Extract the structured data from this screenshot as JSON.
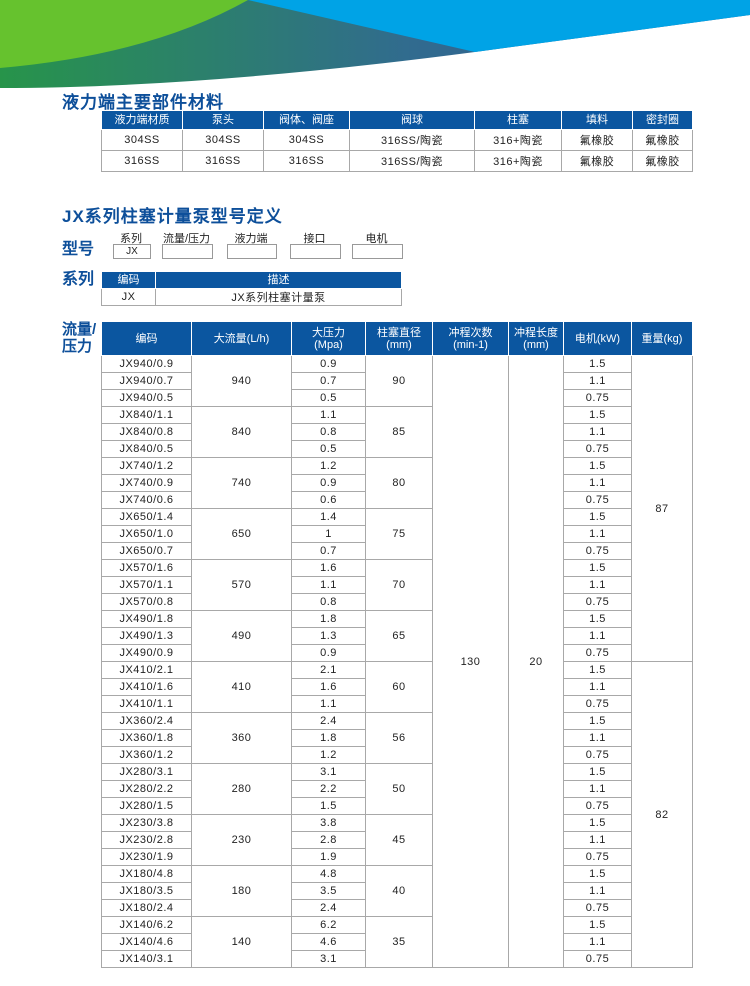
{
  "colors": {
    "header_blue": "#0b56a0",
    "title_blue": "#0d4f9a",
    "banner_green": "#66c22e",
    "banner_blue": "#00a3e6"
  },
  "materials": {
    "title": "液力端主要部件材料",
    "headers": [
      "液力端材质",
      "泵头",
      "阀体、阀座",
      "阀球",
      "柱塞",
      "填料",
      "密封圈"
    ],
    "rows": [
      [
        "304SS",
        "304SS",
        "304SS",
        "316SS/陶瓷",
        "316+陶瓷",
        "氟橡胶",
        "氟橡胶"
      ],
      [
        "316SS",
        "316SS",
        "316SS",
        "316SS/陶瓷",
        "316+陶瓷",
        "氟橡胶",
        "氟橡胶"
      ]
    ]
  },
  "model": {
    "title": "JX系列柱塞计量泵型号定义",
    "label": "型号",
    "fields": [
      {
        "label": "系列",
        "value": "JX"
      },
      {
        "label": "流量/压力",
        "value": ""
      },
      {
        "label": "液力端",
        "value": ""
      },
      {
        "label": "接口",
        "value": ""
      },
      {
        "label": "电机",
        "value": ""
      }
    ]
  },
  "series": {
    "label": "系列",
    "headers": [
      "编码",
      "描述"
    ],
    "rows": [
      [
        "JX",
        "JX系列柱塞计量泵"
      ]
    ]
  },
  "flow": {
    "label": "流量/压力",
    "headers": [
      "编码",
      "大流量(L/h)",
      "大压力\n(Mpa)",
      "柱塞直径\n(mm)",
      "冲程次数\n(min-1)",
      "冲程长度\n(mm)",
      "电机(kW)",
      "重量(kg)"
    ],
    "stroke_count": "130",
    "stroke_length": "20",
    "weights": [
      "87",
      "82"
    ],
    "groups": [
      {
        "flow": "940",
        "diameter": "90",
        "rows": [
          [
            "JX940/0.9",
            "0.9",
            "1.5"
          ],
          [
            "JX940/0.7",
            "0.7",
            "1.1"
          ],
          [
            "JX940/0.5",
            "0.5",
            "0.75"
          ]
        ]
      },
      {
        "flow": "840",
        "diameter": "85",
        "rows": [
          [
            "JX840/1.1",
            "1.1",
            "1.5"
          ],
          [
            "JX840/0.8",
            "0.8",
            "1.1"
          ],
          [
            "JX840/0.5",
            "0.5",
            "0.75"
          ]
        ]
      },
      {
        "flow": "740",
        "diameter": "80",
        "rows": [
          [
            "JX740/1.2",
            "1.2",
            "1.5"
          ],
          [
            "JX740/0.9",
            "0.9",
            "1.1"
          ],
          [
            "JX740/0.6",
            "0.6",
            "0.75"
          ]
        ]
      },
      {
        "flow": "650",
        "diameter": "75",
        "rows": [
          [
            "JX650/1.4",
            "1.4",
            "1.5"
          ],
          [
            "JX650/1.0",
            "1",
            "1.1"
          ],
          [
            "JX650/0.7",
            "0.7",
            "0.75"
          ]
        ]
      },
      {
        "flow": "570",
        "diameter": "70",
        "rows": [
          [
            "JX570/1.6",
            "1.6",
            "1.5"
          ],
          [
            "JX570/1.1",
            "1.1",
            "1.1"
          ],
          [
            "JX570/0.8",
            "0.8",
            "0.75"
          ]
        ]
      },
      {
        "flow": "490",
        "diameter": "65",
        "rows": [
          [
            "JX490/1.8",
            "1.8",
            "1.5"
          ],
          [
            "JX490/1.3",
            "1.3",
            "1.1"
          ],
          [
            "JX490/0.9",
            "0.9",
            "0.75"
          ]
        ]
      },
      {
        "flow": "410",
        "diameter": "60",
        "rows": [
          [
            "JX410/2.1",
            "2.1",
            "1.5"
          ],
          [
            "JX410/1.6",
            "1.6",
            "1.1"
          ],
          [
            "JX410/1.1",
            "1.1",
            "0.75"
          ]
        ]
      },
      {
        "flow": "360",
        "diameter": "56",
        "rows": [
          [
            "JX360/2.4",
            "2.4",
            "1.5"
          ],
          [
            "JX360/1.8",
            "1.8",
            "1.1"
          ],
          [
            "JX360/1.2",
            "1.2",
            "0.75"
          ]
        ]
      },
      {
        "flow": "280",
        "diameter": "50",
        "rows": [
          [
            "JX280/3.1",
            "3.1",
            "1.5"
          ],
          [
            "JX280/2.2",
            "2.2",
            "1.1"
          ],
          [
            "JX280/1.5",
            "1.5",
            "0.75"
          ]
        ]
      },
      {
        "flow": "230",
        "diameter": "45",
        "rows": [
          [
            "JX230/3.8",
            "3.8",
            "1.5"
          ],
          [
            "JX230/2.8",
            "2.8",
            "1.1"
          ],
          [
            "JX230/1.9",
            "1.9",
            "0.75"
          ]
        ]
      },
      {
        "flow": "180",
        "diameter": "40",
        "rows": [
          [
            "JX180/4.8",
            "4.8",
            "1.5"
          ],
          [
            "JX180/3.5",
            "3.5",
            "1.1"
          ],
          [
            "JX180/2.4",
            "2.4",
            "0.75"
          ]
        ]
      },
      {
        "flow": "140",
        "diameter": "35",
        "rows": [
          [
            "JX140/6.2",
            "6.2",
            "1.5"
          ],
          [
            "JX140/4.6",
            "4.6",
            "1.1"
          ],
          [
            "JX140/3.1",
            "3.1",
            "0.75"
          ]
        ]
      }
    ]
  }
}
